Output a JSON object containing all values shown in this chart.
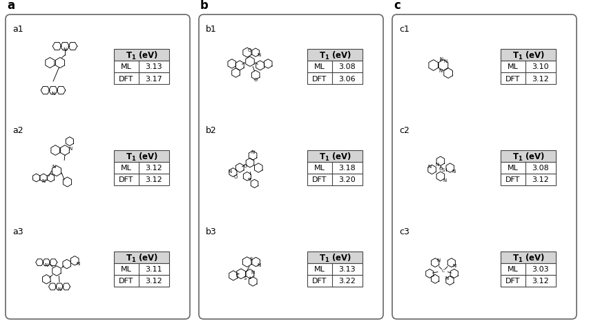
{
  "panels": [
    {
      "label": "a",
      "subpanels": [
        {
          "id": "a1",
          "ml": 3.13,
          "dft": 3.17
        },
        {
          "id": "a2",
          "ml": 3.12,
          "dft": 3.12
        },
        {
          "id": "a3",
          "ml": 3.11,
          "dft": 3.12
        }
      ]
    },
    {
      "label": "b",
      "subpanels": [
        {
          "id": "b1",
          "ml": 3.08,
          "dft": 3.06
        },
        {
          "id": "b2",
          "ml": 3.18,
          "dft": 3.2
        },
        {
          "id": "b3",
          "ml": 3.13,
          "dft": 3.22
        }
      ]
    },
    {
      "label": "c",
      "subpanels": [
        {
          "id": "c1",
          "ml": 3.1,
          "dft": 3.12
        },
        {
          "id": "c2",
          "ml": 3.08,
          "dft": 3.12
        },
        {
          "id": "c3",
          "ml": 3.03,
          "dft": 3.12
        }
      ]
    }
  ],
  "row1_label": "ML",
  "row2_label": "DFT",
  "header_bg": "#d4d4d4",
  "table_border": "#444444",
  "panel_border": "#666666",
  "fig_bg": "#ffffff",
  "panel_label_fontsize": 12,
  "sub_label_fontsize": 9,
  "table_fontsize": 8,
  "header_fontsize": 8.5
}
